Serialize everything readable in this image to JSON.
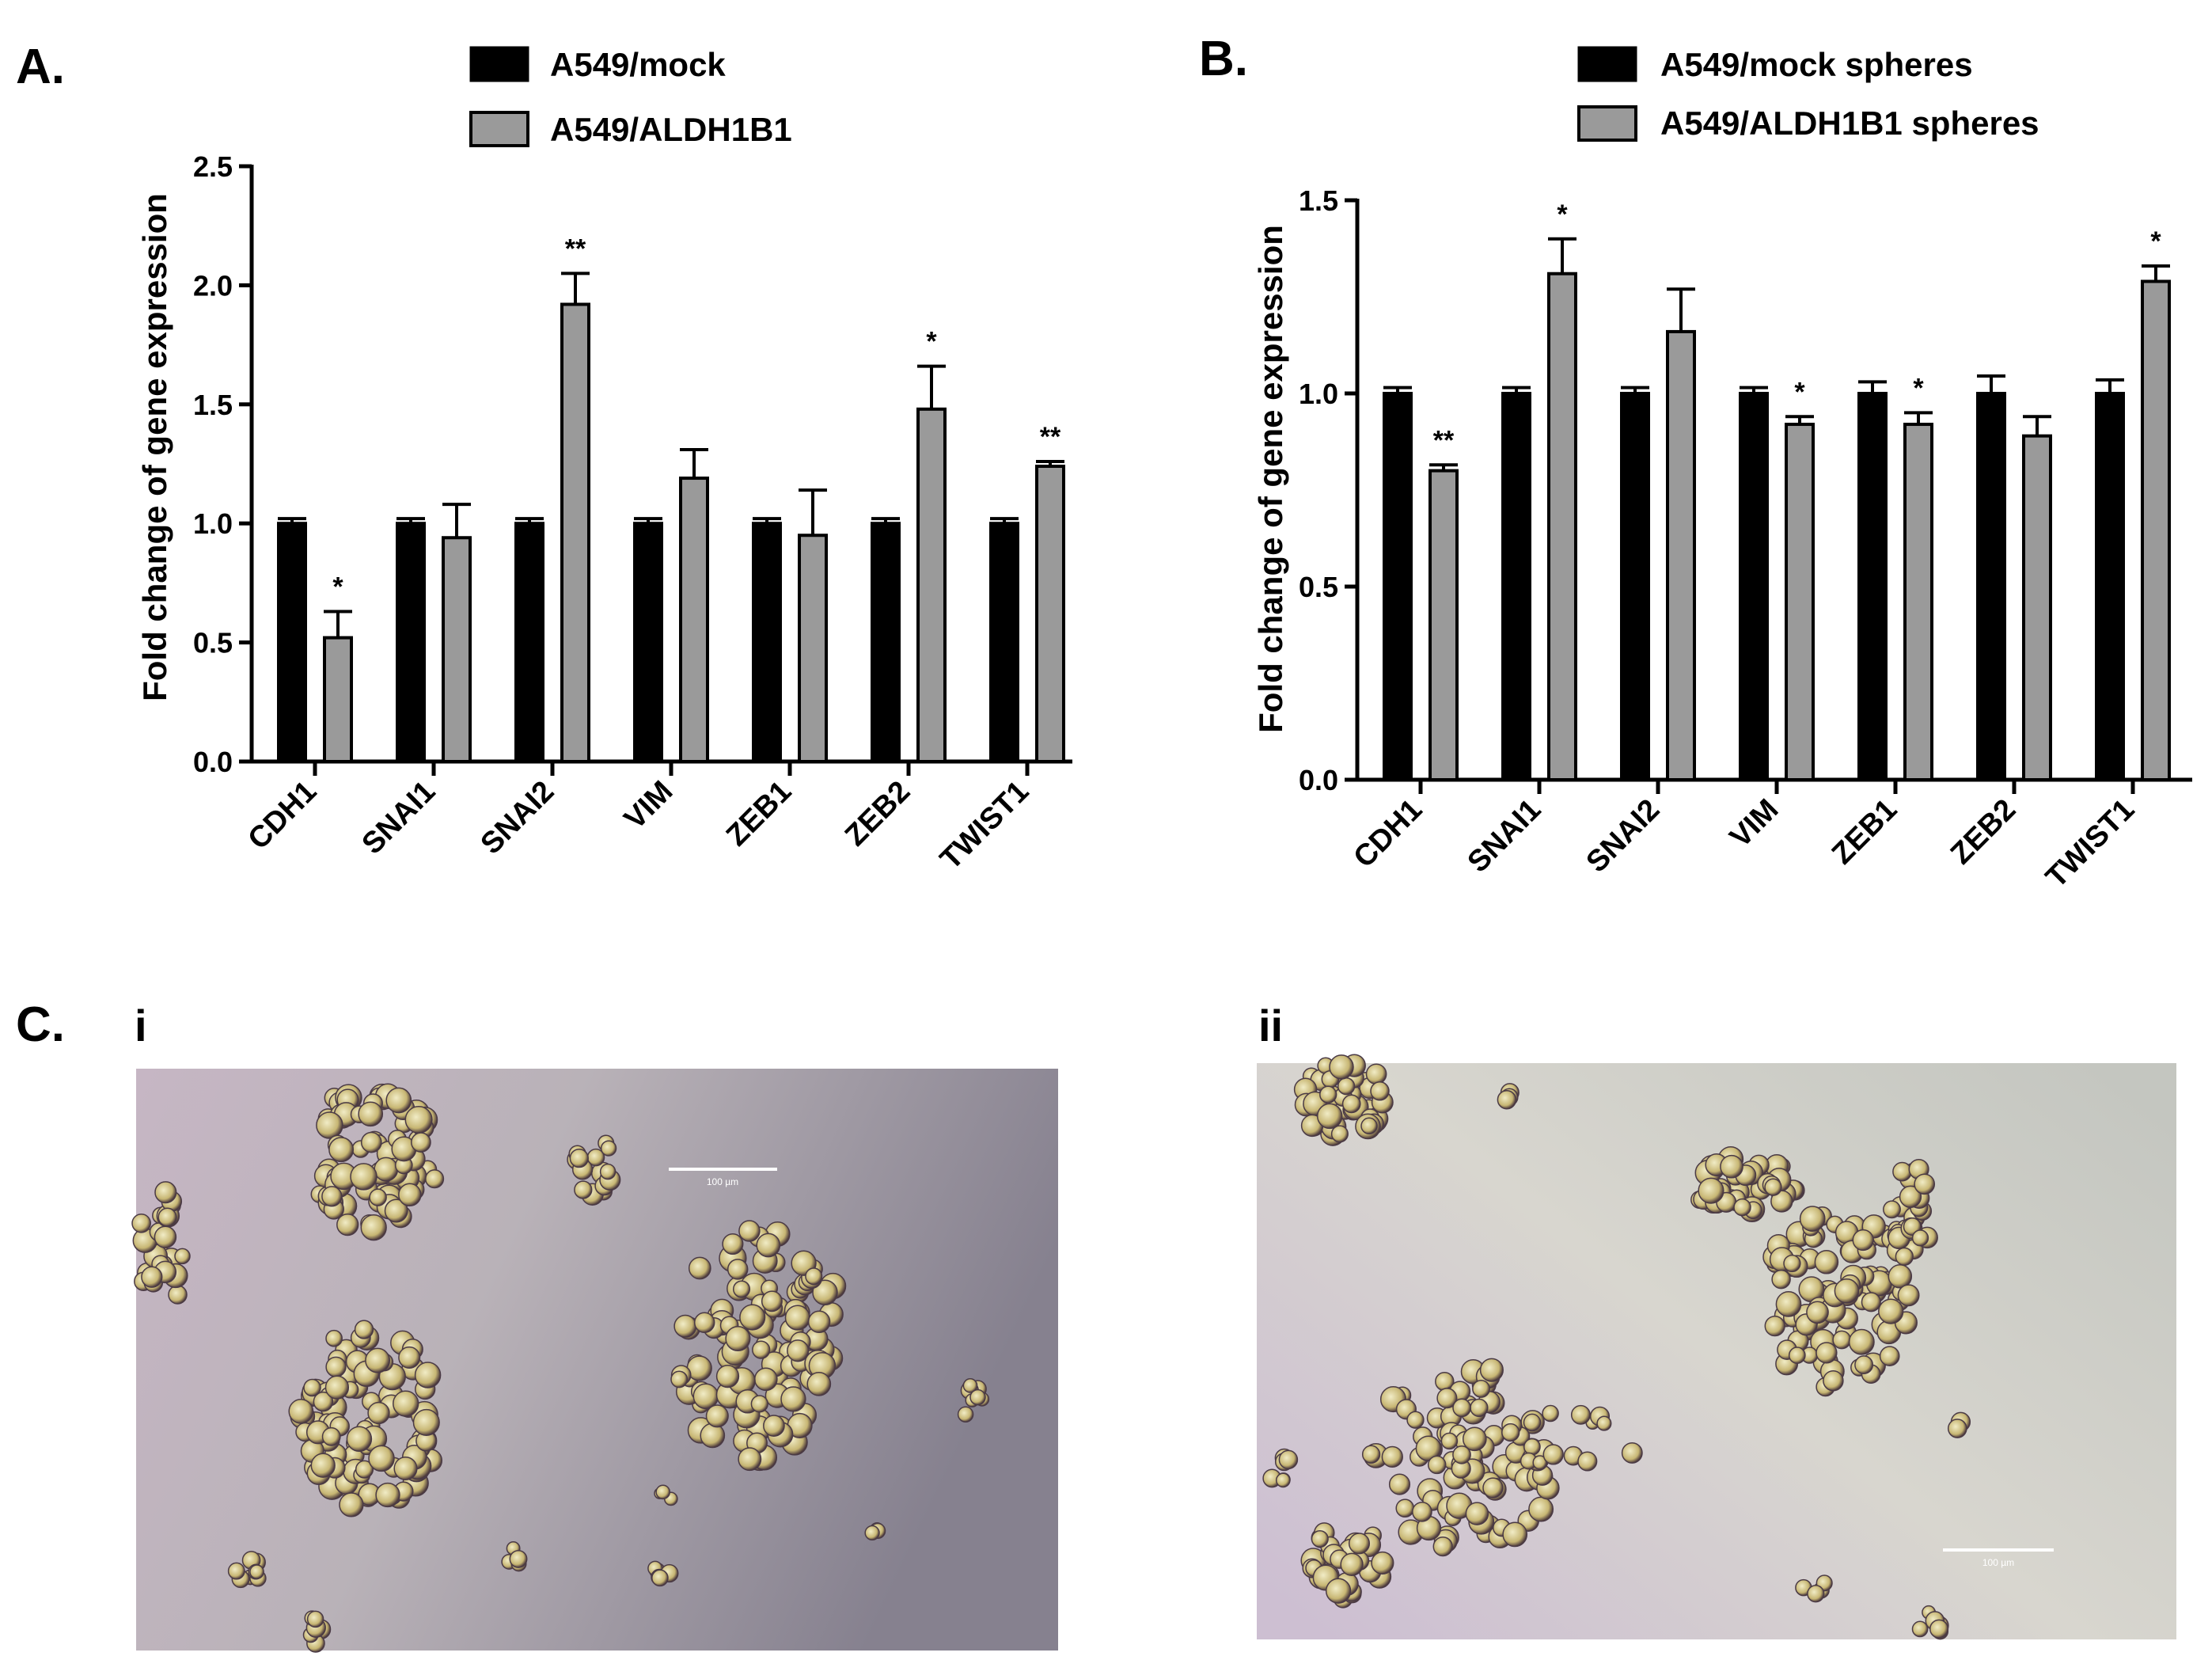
{
  "panels": {
    "a": "A.",
    "b": "B.",
    "c": "C.",
    "c_i": "i",
    "c_ii": "ii"
  },
  "colors": {
    "mock": "#000000",
    "aldh": "#9a9a9a"
  },
  "chart_data": [
    {
      "type": "bar",
      "id": "A",
      "categories": [
        "CDH1",
        "SNAI1",
        "SNAI2",
        "VIM",
        "ZEB1",
        "ZEB2",
        "TWIST1"
      ],
      "series": [
        {
          "name": "A549/mock",
          "values": [
            1.0,
            1.0,
            1.0,
            1.0,
            1.0,
            1.0,
            1.0
          ],
          "errors": [
            0.02,
            0.02,
            0.02,
            0.02,
            0.02,
            0.02,
            0.02
          ]
        },
        {
          "name": "A549/ALDH1B1",
          "values": [
            0.52,
            0.94,
            1.92,
            1.19,
            0.95,
            1.48,
            1.24
          ],
          "errors": [
            0.11,
            0.14,
            0.13,
            0.12,
            0.19,
            0.18,
            0.02
          ]
        }
      ],
      "significance": [
        "*",
        "",
        "**",
        "",
        "",
        "*",
        "**"
      ],
      "ylabel": "Fold change of gene expression",
      "ylim": [
        0,
        2.5
      ],
      "yticks": [
        "0.0",
        "0.5",
        "1.0",
        "1.5",
        "2.0",
        "2.5"
      ],
      "grid": false,
      "legend": "top"
    },
    {
      "type": "bar",
      "id": "B",
      "categories": [
        "CDH1",
        "SNAI1",
        "SNAI2",
        "VIM",
        "ZEB1",
        "ZEB2",
        "TWIST1"
      ],
      "series": [
        {
          "name": "A549/mock spheres",
          "values": [
            1.0,
            1.0,
            1.0,
            1.0,
            1.0,
            1.0,
            1.0
          ],
          "errors": [
            0.015,
            0.015,
            0.015,
            0.015,
            0.03,
            0.045,
            0.035
          ]
        },
        {
          "name": "A549/ALDH1B1 spheres",
          "values": [
            0.8,
            1.31,
            1.16,
            0.92,
            0.92,
            0.89,
            1.29
          ],
          "errors": [
            0.015,
            0.09,
            0.11,
            0.02,
            0.03,
            0.05,
            0.04
          ]
        }
      ],
      "significance": [
        "**",
        "*",
        "",
        "*",
        "*",
        "",
        "*"
      ],
      "ylabel": "Fold change of gene expression",
      "ylim": [
        0,
        1.5
      ],
      "yticks": [
        "0.0",
        "0.5",
        "1.0",
        "1.5"
      ],
      "grid": false,
      "legend": "top"
    }
  ],
  "micrographs": {
    "i_scale": "100 µm",
    "ii_scale": "100 µm"
  }
}
